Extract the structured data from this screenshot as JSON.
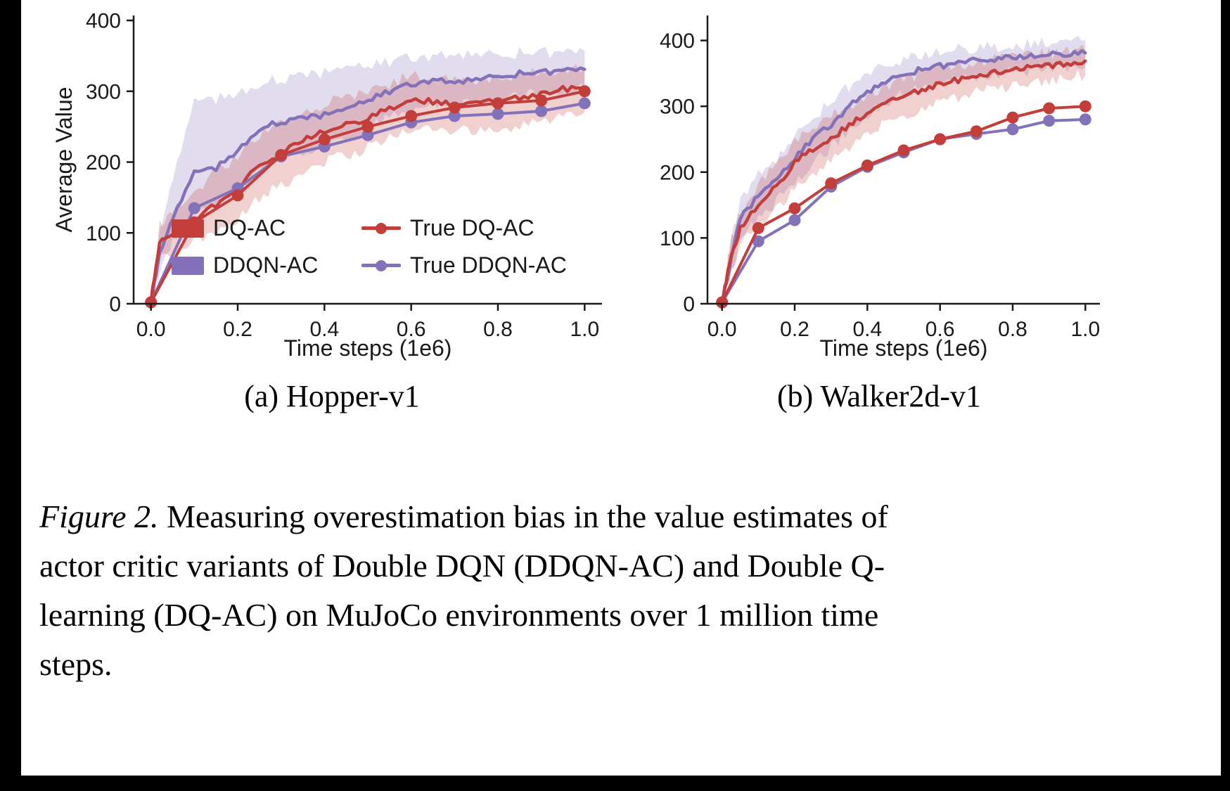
{
  "page": {
    "background": "#ffffff",
    "edge_bar_color": "#000000"
  },
  "colors": {
    "red": "#c33d3b",
    "purple": "#8371b9",
    "axis": "#1a1a1a"
  },
  "figure": {
    "subcaptions": [
      "(a) Hopper-v1",
      "(b) Walker2d-v1"
    ],
    "caption_label": "Figure 2.",
    "caption_lines": [
      "Measuring overestimation bias in the value estimates of",
      "actor critic variants of Double DQN (DDQN-AC) and Double Q-",
      "learning (DQ-AC) on MuJoCo environments over 1 million time",
      "steps."
    ]
  },
  "legend": {
    "items": [
      {
        "label": "DQ-AC",
        "color": "#c33d3b",
        "sample": "band"
      },
      {
        "label": "True DQ-AC",
        "color": "#c33d3b",
        "sample": "line-dot"
      },
      {
        "label": "DDQN-AC",
        "color": "#8371b9",
        "sample": "band"
      },
      {
        "label": "True DDQN-AC",
        "color": "#8371b9",
        "sample": "line-dot"
      }
    ]
  },
  "chart_data": [
    {
      "type": "line",
      "title": "(a) Hopper-v1",
      "xlabel": "Time steps (1e6)",
      "ylabel": "Average Value",
      "xlim": [
        -0.04,
        1.04
      ],
      "ylim": [
        0,
        407
      ],
      "xticks": [
        0,
        0.2,
        0.4,
        0.6,
        0.8,
        1.0
      ],
      "xtick_labels": [
        "0.0",
        "0.2",
        "0.4",
        "0.6",
        "0.8",
        "1.0"
      ],
      "yticks": [
        0,
        100,
        200,
        300,
        400
      ],
      "ytick_labels": [
        "0",
        "100",
        "200",
        "300",
        "400"
      ],
      "legend_position": "lower center-left inside plot",
      "grid": false,
      "series": [
        {
          "name": "DDQN-AC",
          "color": "#8371b9",
          "band": true,
          "x": [
            0,
            0.02,
            0.05,
            0.1,
            0.15,
            0.2,
            0.25,
            0.3,
            0.35,
            0.4,
            0.45,
            0.5,
            0.55,
            0.6,
            0.65,
            0.7,
            0.75,
            0.8,
            0.85,
            0.9,
            0.95,
            1.0
          ],
          "y": [
            3,
            70,
            120,
            185,
            192,
            215,
            247,
            257,
            262,
            266,
            272,
            287,
            300,
            310,
            316,
            311,
            316,
            321,
            325,
            326,
            330,
            331
          ],
          "lo": [
            0,
            45,
            85,
            130,
            140,
            160,
            190,
            205,
            215,
            222,
            230,
            248,
            262,
            275,
            282,
            278,
            284,
            290,
            295,
            297,
            302,
            304
          ],
          "hi": [
            6,
            100,
            175,
            285,
            290,
            295,
            310,
            318,
            322,
            325,
            328,
            335,
            342,
            348,
            350,
            348,
            350,
            352,
            354,
            354,
            356,
            357
          ]
        },
        {
          "name": "DQ-AC",
          "color": "#c33d3b",
          "band": true,
          "x": [
            0,
            0.02,
            0.05,
            0.1,
            0.15,
            0.2,
            0.25,
            0.3,
            0.35,
            0.4,
            0.45,
            0.5,
            0.55,
            0.6,
            0.65,
            0.7,
            0.75,
            0.8,
            0.85,
            0.9,
            0.95,
            1.0
          ],
          "y": [
            3,
            85,
            100,
            118,
            140,
            162,
            196,
            212,
            232,
            243,
            252,
            262,
            276,
            290,
            285,
            281,
            284,
            286,
            291,
            296,
            303,
            305
          ],
          "lo": [
            0,
            60,
            75,
            88,
            100,
            120,
            150,
            168,
            185,
            200,
            210,
            220,
            235,
            248,
            245,
            242,
            246,
            248,
            252,
            258,
            266,
            270
          ],
          "hi": [
            6,
            110,
            130,
            150,
            185,
            210,
            240,
            255,
            272,
            282,
            290,
            298,
            310,
            322,
            318,
            314,
            316,
            318,
            322,
            326,
            332,
            334
          ]
        },
        {
          "name": "True DDQN-AC",
          "color": "#8371b9",
          "markers": true,
          "x": [
            0,
            0.1,
            0.2,
            0.3,
            0.4,
            0.5,
            0.6,
            0.7,
            0.8,
            0.9,
            1.0
          ],
          "y": [
            2,
            135,
            163,
            208,
            222,
            238,
            256,
            265,
            268,
            272,
            283
          ]
        },
        {
          "name": "True DQ-AC",
          "color": "#c33d3b",
          "markers": true,
          "x": [
            0,
            0.1,
            0.2,
            0.3,
            0.4,
            0.5,
            0.6,
            0.7,
            0.8,
            0.9,
            1.0
          ],
          "y": [
            2,
            115,
            153,
            210,
            232,
            250,
            265,
            277,
            283,
            287,
            300
          ]
        }
      ]
    },
    {
      "type": "line",
      "title": "(b) Walker2d-v1",
      "xlabel": "Time steps (1e6)",
      "ylabel": "",
      "xlim": [
        -0.04,
        1.04
      ],
      "ylim": [
        0,
        438
      ],
      "xticks": [
        0,
        0.2,
        0.4,
        0.6,
        0.8,
        1.0
      ],
      "xtick_labels": [
        "0.0",
        "0.2",
        "0.4",
        "0.6",
        "0.8",
        "1.0"
      ],
      "yticks": [
        0,
        100,
        200,
        300,
        400
      ],
      "ytick_labels": [
        "0",
        "100",
        "200",
        "300",
        "400"
      ],
      "grid": false,
      "series": [
        {
          "name": "DDQN-AC",
          "color": "#8371b9",
          "band": true,
          "x": [
            0,
            0.02,
            0.05,
            0.1,
            0.15,
            0.2,
            0.25,
            0.3,
            0.35,
            0.4,
            0.45,
            0.5,
            0.55,
            0.6,
            0.65,
            0.7,
            0.75,
            0.8,
            0.85,
            0.9,
            0.95,
            1.0
          ],
          "y": [
            3,
            55,
            130,
            163,
            186,
            220,
            252,
            272,
            300,
            320,
            336,
            349,
            356,
            361,
            366,
            370,
            372,
            375,
            376,
            378,
            380,
            381
          ],
          "lo": [
            0,
            35,
            100,
            130,
            155,
            185,
            215,
            238,
            265,
            288,
            305,
            318,
            327,
            334,
            340,
            345,
            348,
            352,
            354,
            356,
            358,
            360
          ],
          "hi": [
            6,
            80,
            160,
            195,
            215,
            252,
            285,
            305,
            330,
            348,
            362,
            372,
            378,
            382,
            386,
            389,
            391,
            394,
            395,
            397,
            399,
            401
          ]
        },
        {
          "name": "DQ-AC",
          "color": "#c33d3b",
          "band": true,
          "x": [
            0,
            0.02,
            0.05,
            0.1,
            0.15,
            0.2,
            0.25,
            0.3,
            0.35,
            0.4,
            0.45,
            0.5,
            0.55,
            0.6,
            0.65,
            0.7,
            0.75,
            0.8,
            0.85,
            0.9,
            0.95,
            1.0
          ],
          "y": [
            3,
            60,
            115,
            150,
            178,
            215,
            236,
            252,
            271,
            290,
            305,
            315,
            325,
            334,
            340,
            346,
            351,
            355,
            359,
            362,
            366,
            369
          ],
          "lo": [
            0,
            40,
            90,
            118,
            142,
            178,
            200,
            218,
            238,
            258,
            274,
            285,
            296,
            306,
            313,
            320,
            326,
            331,
            336,
            340,
            344,
            347
          ],
          "hi": [
            6,
            85,
            140,
            180,
            212,
            248,
            268,
            284,
            300,
            318,
            332,
            341,
            350,
            358,
            363,
            368,
            372,
            375,
            378,
            380,
            383,
            386
          ]
        },
        {
          "name": "True DDQN-AC",
          "color": "#8371b9",
          "markers": true,
          "x": [
            0,
            0.1,
            0.2,
            0.3,
            0.4,
            0.5,
            0.6,
            0.7,
            0.8,
            0.9,
            1.0
          ],
          "y": [
            2,
            95,
            127,
            178,
            208,
            230,
            250,
            258,
            265,
            278,
            280
          ]
        },
        {
          "name": "True DQ-AC",
          "color": "#c33d3b",
          "markers": true,
          "x": [
            0,
            0.1,
            0.2,
            0.3,
            0.4,
            0.5,
            0.6,
            0.7,
            0.8,
            0.9,
            1.0
          ],
          "y": [
            2,
            115,
            145,
            183,
            210,
            233,
            250,
            262,
            283,
            297,
            300
          ]
        }
      ]
    }
  ]
}
